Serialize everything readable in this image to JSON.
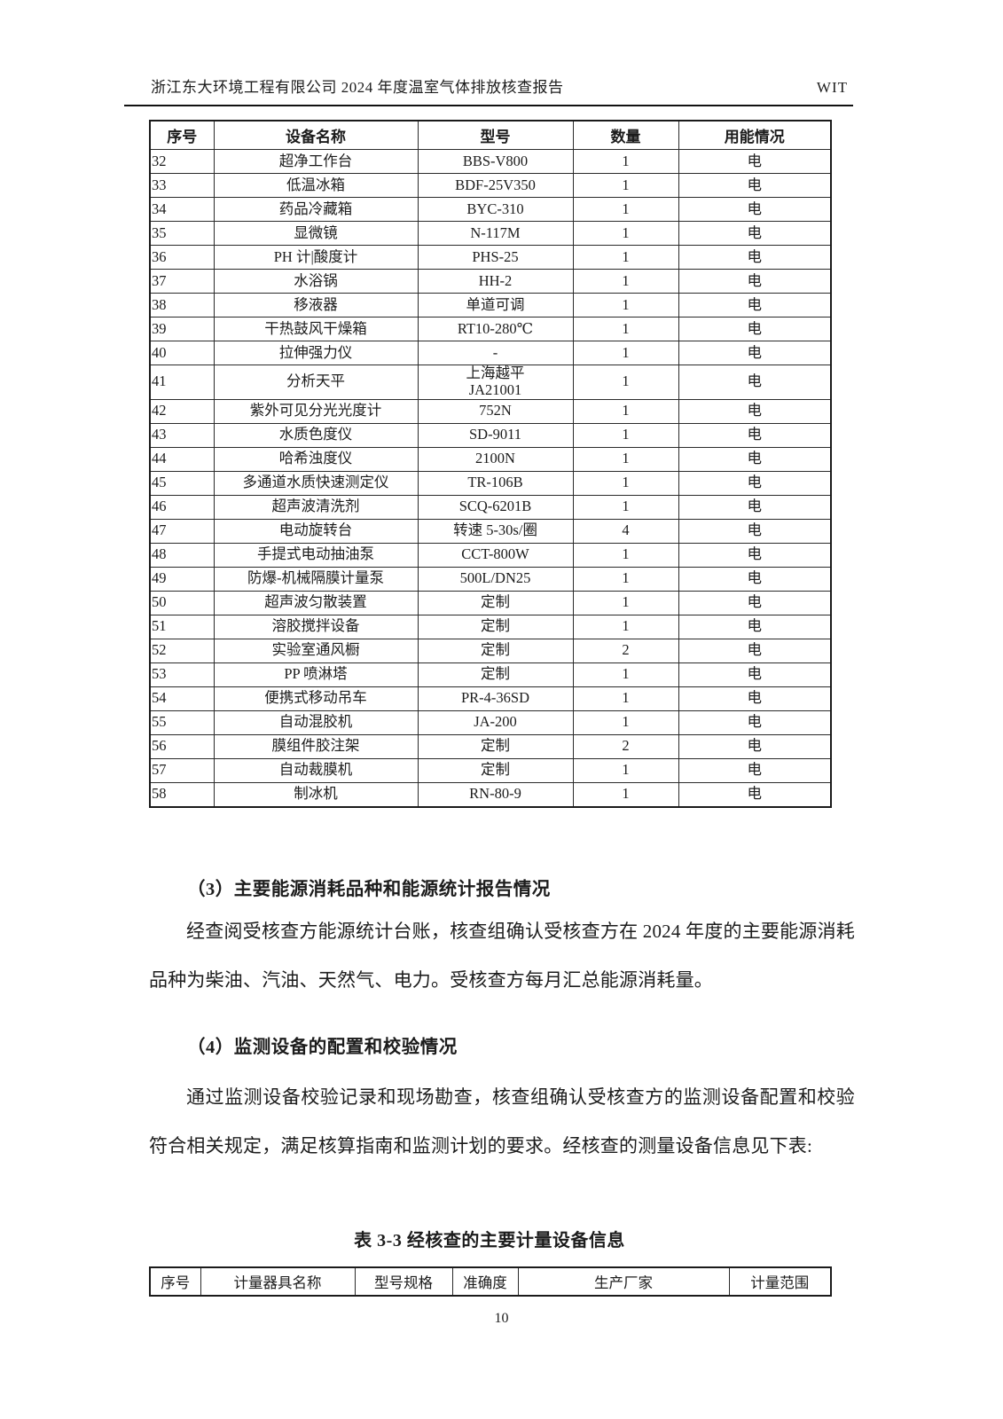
{
  "header": {
    "title": "浙江东大环境工程有限公司 2024 年度温室气体排放核查报告",
    "logo": "WIT"
  },
  "equipment_table": {
    "columns": [
      "序号",
      "设备名称",
      "型号",
      "数量",
      "用能情况"
    ],
    "rows": [
      [
        "32",
        "超净工作台",
        "BBS-V800",
        "1",
        "电"
      ],
      [
        "33",
        "低温冰箱",
        "BDF-25V350",
        "1",
        "电"
      ],
      [
        "34",
        "药品冷藏箱",
        "BYC-310",
        "1",
        "电"
      ],
      [
        "35",
        "显微镜",
        "N-117M",
        "1",
        "电"
      ],
      [
        "36",
        "PH 计|酸度计",
        "PHS-25",
        "1",
        "电"
      ],
      [
        "37",
        "水浴锅",
        "HH-2",
        "1",
        "电"
      ],
      [
        "38",
        "移液器",
        "单道可调",
        "1",
        "电"
      ],
      [
        "39",
        "干热鼓风干燥箱",
        "RT10-280℃",
        "1",
        "电"
      ],
      [
        "40",
        "拉伸强力仪",
        "-",
        "1",
        "电"
      ],
      [
        "41",
        "分析天平",
        "上海越平\nJA21001",
        "1",
        "电"
      ],
      [
        "42",
        "紫外可见分光光度计",
        "752N",
        "1",
        "电"
      ],
      [
        "43",
        "水质色度仪",
        "SD-9011",
        "1",
        "电"
      ],
      [
        "44",
        "哈希浊度仪",
        "2100N",
        "1",
        "电"
      ],
      [
        "45",
        "多通道水质快速测定仪",
        "TR-106B",
        "1",
        "电"
      ],
      [
        "46",
        "超声波清洗剂",
        "SCQ-6201B",
        "1",
        "电"
      ],
      [
        "47",
        "电动旋转台",
        "转速 5-30s/圈",
        "4",
        "电"
      ],
      [
        "48",
        "手提式电动抽油泵",
        "CCT-800W",
        "1",
        "电"
      ],
      [
        "49",
        "防爆-机械隔膜计量泵",
        "500L/DN25",
        "1",
        "电"
      ],
      [
        "50",
        "超声波匀散装置",
        "定制",
        "1",
        "电"
      ],
      [
        "51",
        "溶胶搅拌设备",
        "定制",
        "1",
        "电"
      ],
      [
        "52",
        "实验室通风橱",
        "定制",
        "2",
        "电"
      ],
      [
        "53",
        "PP 喷淋塔",
        "定制",
        "1",
        "电"
      ],
      [
        "54",
        "便携式移动吊车",
        "PR-4-36SD",
        "1",
        "电"
      ],
      [
        "55",
        "自动混胶机",
        "JA-200",
        "1",
        "电"
      ],
      [
        "56",
        "膜组件胶注架",
        "定制",
        "2",
        "电"
      ],
      [
        "57",
        "自动裁膜机",
        "定制",
        "1",
        "电"
      ],
      [
        "58",
        "制冰机",
        "RN-80-9",
        "1",
        "电"
      ]
    ]
  },
  "sections": [
    {
      "heading": "（3）主要能源消耗品种和能源统计报告情况",
      "paragraph": "经查阅受核查方能源统计台账，核查组确认受核查方在 2024 年度的主要能源消耗品种为柴油、汽油、天然气、电力。受核查方每月汇总能源消耗量。"
    },
    {
      "heading": "（4）监测设备的配置和校验情况",
      "paragraph": "通过监测设备校验记录和现场勘查，核查组确认受核查方的监测设备配置和校验符合相关规定，满足核算指南和监测计划的要求。经核查的测量设备信息见下表:"
    }
  ],
  "measure_table": {
    "title": "表 3-3 经核查的主要计量设备信息",
    "columns": [
      "序号",
      "计量器具名称",
      "型号规格",
      "准确度",
      "生产厂家",
      "计量范围"
    ]
  },
  "footer": {
    "page_number": "10"
  }
}
